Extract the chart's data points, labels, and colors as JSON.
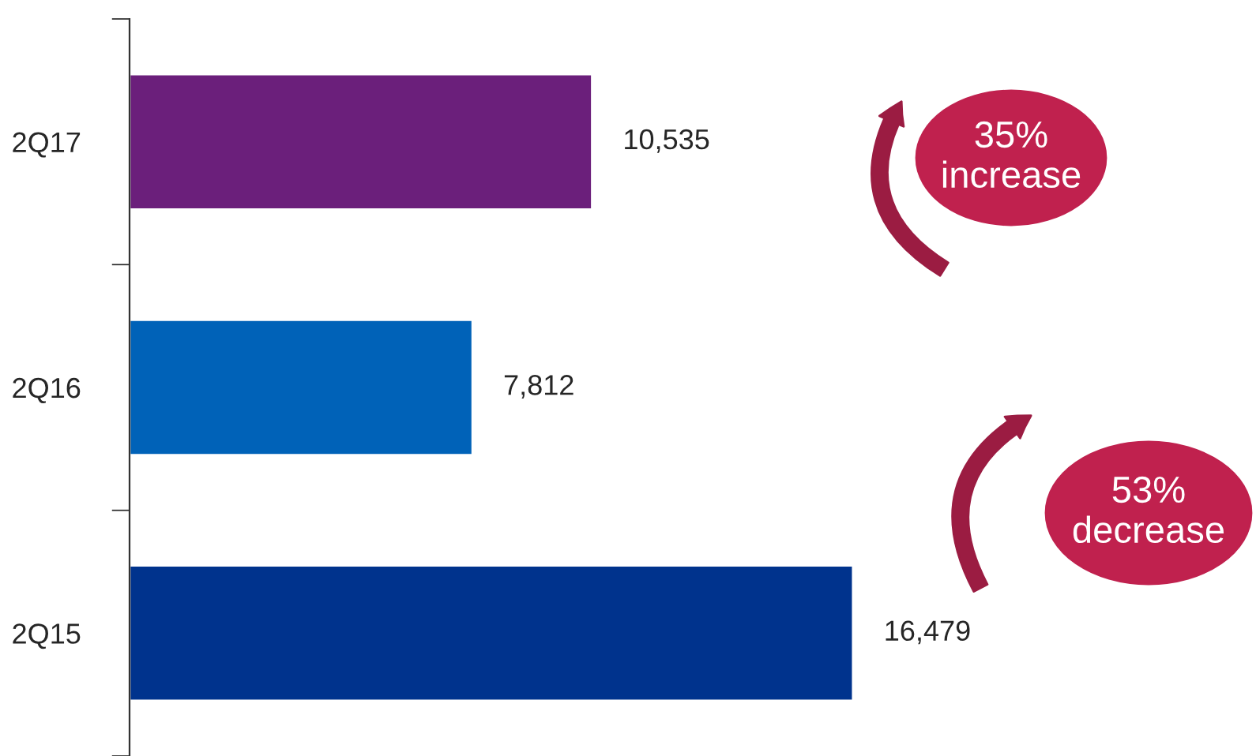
{
  "chart_data": {
    "type": "bar",
    "orientation": "horizontal",
    "categories": [
      "2Q17",
      "2Q16",
      "2Q15"
    ],
    "values": [
      10535,
      7812,
      16479
    ],
    "colors": [
      "#6b1f7b",
      "#0062b8",
      "#00338d"
    ],
    "data_labels": true,
    "value_labels": [
      "10,535",
      "7,812",
      "16,479"
    ],
    "annotations": [
      "35%\nincrease",
      "53%\ndecrease"
    ]
  }
}
